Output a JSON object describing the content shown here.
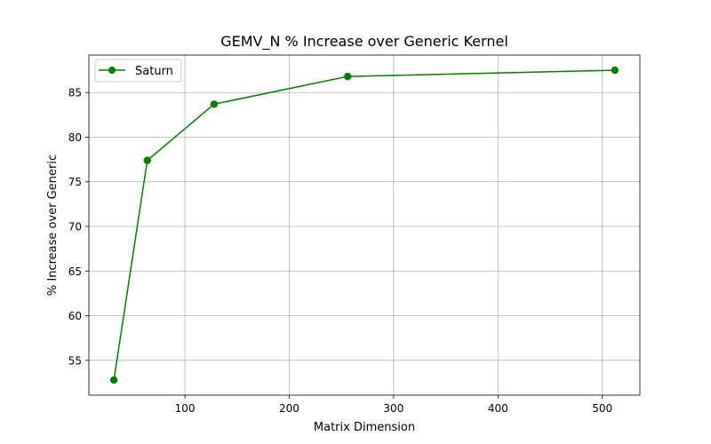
{
  "chart_data": {
    "type": "line",
    "title": "GEMV_N % Increase over Generic Kernel",
    "xlabel": "Matrix Dimension",
    "ylabel": "% Increase over Generic",
    "xlim": [
      8,
      536
    ],
    "ylim": [
      51.1,
      89.2
    ],
    "xticks": [
      100,
      200,
      300,
      400,
      500
    ],
    "yticks": [
      55,
      60,
      65,
      70,
      75,
      80,
      85
    ],
    "grid": true,
    "legend_position": "top-left",
    "series": [
      {
        "name": "Saturn",
        "color": "#008000",
        "marker": "circle",
        "x": [
          32,
          64,
          128,
          256,
          512
        ],
        "y": [
          52.8,
          77.4,
          83.7,
          86.8,
          87.5
        ]
      }
    ]
  }
}
